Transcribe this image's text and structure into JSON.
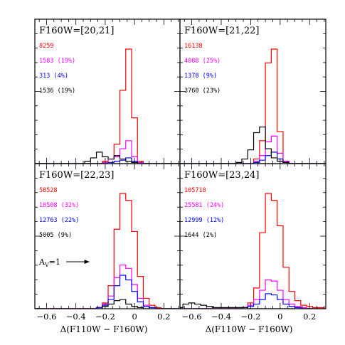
{
  "colors": {
    "red": "#ff0000",
    "magenta": "#ff00ff",
    "blue": "#0000ff",
    "black": "#000000"
  },
  "chart_data": {
    "type": "bar",
    "xlabel": "Δ(F110W − F160W)",
    "xlim": [
      -0.68,
      0.31
    ],
    "xticks": [
      -0.6,
      -0.4,
      -0.2,
      0,
      0.2
    ],
    "xtick_labels": [
      "−0.6",
      "−0.4",
      "−0.2",
      "0",
      "0.2"
    ],
    "ylim": [
      0,
      1
    ],
    "bin_width": 0.04,
    "bin_edges_start": -0.7,
    "series_colors": [
      "red",
      "magenta",
      "blue",
      "black"
    ],
    "annotation": {
      "text": "A",
      "subscript": "V",
      "suffix": "=1",
      "arrow_length_mag": 0.1
    },
    "panels": [
      {
        "title": "F160W=[20,21]",
        "counts": [
          {
            "text": "8259",
            "color": "red"
          },
          {
            "text": "1583  (19%)",
            "color": "magenta"
          },
          {
            "text": "313  (4%)",
            "color": "blue"
          },
          {
            "text": "1536  (19%)",
            "color": "black"
          }
        ],
        "series": [
          {
            "color": "red",
            "values": [
              0,
              0,
              0,
              0,
              0,
              0,
              0,
              0,
              0,
              0,
              0,
              0,
              0.02,
              0.04,
              0.17,
              0.64,
              1.0,
              0.4,
              0.02,
              0,
              0,
              0,
              0,
              0,
              0
            ]
          },
          {
            "color": "magenta",
            "values": [
              0,
              0,
              0,
              0,
              0,
              0,
              0,
              0,
              0,
              0,
              0,
              0,
              0.01,
              0.04,
              0.06,
              0.13,
              0.2,
              0.06,
              0.01,
              0,
              0,
              0,
              0,
              0,
              0
            ]
          },
          {
            "color": "blue",
            "values": [
              0,
              0,
              0,
              0,
              0,
              0,
              0,
              0,
              0,
              0,
              0,
              0,
              0,
              0.01,
              0.02,
              0.03,
              0.05,
              0.02,
              0,
              0,
              0,
              0,
              0,
              0,
              0
            ]
          },
          {
            "color": "black",
            "values": [
              0,
              0,
              0,
              0,
              0,
              0,
              0,
              0,
              0,
              0.02,
              0.05,
              0.1,
              0.06,
              0.04,
              0.07,
              0.04,
              0.02,
              0.01,
              0,
              0,
              0,
              0,
              0,
              0,
              0
            ]
          }
        ]
      },
      {
        "title": "F160W=[21,22]",
        "counts": [
          {
            "text": "16138",
            "color": "red"
          },
          {
            "text": "4088  (25%)",
            "color": "magenta"
          },
          {
            "text": "1378  (9%)",
            "color": "blue"
          },
          {
            "text": "3760  (23%)",
            "color": "black"
          }
        ],
        "series": [
          {
            "color": "red",
            "values": [
              0,
              0,
              0,
              0,
              0,
              0,
              0,
              0,
              0,
              0,
              0,
              0,
              0,
              0.04,
              0.2,
              0.88,
              1.0,
              0.28,
              0.02,
              0,
              0,
              0,
              0,
              0,
              0
            ]
          },
          {
            "color": "magenta",
            "values": [
              0,
              0,
              0,
              0,
              0,
              0,
              0,
              0,
              0,
              0,
              0,
              0,
              0,
              0.02,
              0.07,
              0.19,
              0.24,
              0.09,
              0.02,
              0,
              0,
              0,
              0,
              0,
              0
            ]
          },
          {
            "color": "blue",
            "values": [
              0,
              0,
              0,
              0,
              0,
              0,
              0,
              0,
              0,
              0,
              0,
              0,
              0,
              0.01,
              0.03,
              0.07,
              0.1,
              0.04,
              0.01,
              0,
              0,
              0,
              0,
              0,
              0
            ]
          },
          {
            "color": "black",
            "values": [
              0,
              0,
              0,
              0,
              0,
              0,
              0,
              0,
              0,
              0,
              0.01,
              0.04,
              0.12,
              0.27,
              0.32,
              0.13,
              0.05,
              0.02,
              0.01,
              0,
              0,
              0,
              0,
              0,
              0
            ]
          }
        ]
      },
      {
        "title": "F160W=[22,23]",
        "counts": [
          {
            "text": "58528",
            "color": "red"
          },
          {
            "text": "18508  (32%)",
            "color": "magenta"
          },
          {
            "text": "12763  (22%)",
            "color": "blue"
          },
          {
            "text": "5005  (9%)",
            "color": "black"
          }
        ],
        "series": [
          {
            "color": "red",
            "values": [
              0,
              0,
              0,
              0,
              0,
              0,
              0,
              0,
              0,
              0,
              0,
              0.01,
              0.05,
              0.2,
              0.69,
              1.0,
              0.94,
              0.67,
              0.28,
              0.09,
              0.03,
              0.01,
              0,
              0,
              0
            ]
          },
          {
            "color": "magenta",
            "values": [
              0,
              0,
              0,
              0,
              0,
              0,
              0,
              0,
              0,
              0,
              0,
              0.01,
              0.04,
              0.11,
              0.27,
              0.38,
              0.35,
              0.21,
              0.09,
              0.03,
              0.01,
              0,
              0,
              0,
              0
            ]
          },
          {
            "color": "blue",
            "values": [
              0,
              0,
              0,
              0,
              0,
              0,
              0,
              0,
              0,
              0,
              0,
              0.01,
              0.03,
              0.08,
              0.2,
              0.29,
              0.25,
              0.15,
              0.06,
              0.02,
              0.01,
              0,
              0,
              0,
              0
            ]
          },
          {
            "color": "black",
            "values": [
              0,
              0,
              0,
              0,
              0,
              0,
              0,
              0,
              0,
              0,
              0,
              0,
              0.02,
              0.04,
              0.07,
              0.08,
              0.04,
              0.02,
              0.01,
              0,
              0,
              0,
              0,
              0,
              0
            ]
          }
        ]
      },
      {
        "title": "F160W=[23,24]",
        "counts": [
          {
            "text": "105718",
            "color": "red"
          },
          {
            "text": "25581  (24%)",
            "color": "magenta"
          },
          {
            "text": "12999  (12%)",
            "color": "blue"
          },
          {
            "text": "1644  (2%)",
            "color": "black"
          }
        ],
        "series": [
          {
            "color": "red",
            "values": [
              0,
              0,
              0,
              0,
              0,
              0,
              0,
              0,
              0,
              0,
              0,
              0.01,
              0.05,
              0.18,
              0.66,
              1.0,
              0.94,
              0.72,
              0.36,
              0.15,
              0.07,
              0.03,
              0.02,
              0.01,
              0.01
            ]
          },
          {
            "color": "magenta",
            "values": [
              0,
              0,
              0,
              0,
              0,
              0,
              0,
              0,
              0,
              0,
              0,
              0.01,
              0.03,
              0.08,
              0.16,
              0.25,
              0.24,
              0.16,
              0.08,
              0.04,
              0.02,
              0.01,
              0,
              0,
              0
            ]
          },
          {
            "color": "blue",
            "values": [
              0,
              0,
              0,
              0,
              0,
              0,
              0,
              0,
              0,
              0,
              0,
              0.01,
              0.02,
              0.04,
              0.08,
              0.13,
              0.12,
              0.08,
              0.04,
              0.02,
              0.01,
              0,
              0,
              0,
              0
            ]
          },
          {
            "color": "black",
            "values": [
              0.01,
              0.04,
              0.05,
              0.04,
              0.03,
              0.02,
              0.01,
              0.01,
              0.01,
              0.01,
              0.01,
              0.01,
              0,
              0,
              0,
              0,
              0,
              0,
              0,
              0,
              0,
              0,
              0,
              0,
              0
            ]
          }
        ]
      }
    ]
  }
}
